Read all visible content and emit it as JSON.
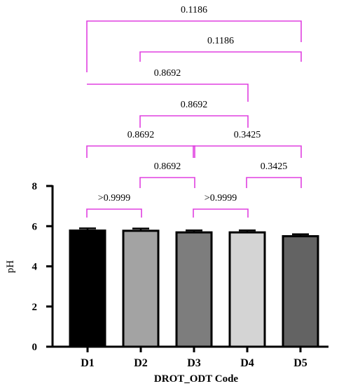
{
  "chart_data": {
    "type": "bar",
    "xlabel": "DROT_ODT Code",
    "ylabel": "pH",
    "categories": [
      "D1",
      "D2",
      "D3",
      "D4",
      "D5"
    ],
    "values": [
      5.78,
      5.77,
      5.69,
      5.69,
      5.5
    ],
    "errors": [
      0.11,
      0.11,
      0.1,
      0.1,
      0.1
    ],
    "ylim": [
      0,
      8
    ],
    "yticks": [
      "0",
      "2",
      "4",
      "6",
      "8"
    ],
    "bar_colors": [
      "#000000",
      "#a3a3a3",
      "#7d7d7d",
      "#d4d4d4",
      "#636363"
    ],
    "comparisons": [
      {
        "from": "D1",
        "to": "D2",
        "label": ">0.9999"
      },
      {
        "from": "D3",
        "to": "D4",
        "label": ">0.9999"
      },
      {
        "from": "D2",
        "to": "D3",
        "label": "0.8692"
      },
      {
        "from": "D4",
        "to": "D5",
        "label": "0.3425"
      },
      {
        "from": "D1",
        "to": "D3",
        "label": "0.8692"
      },
      {
        "from": "D3",
        "to": "D5",
        "label": "0.3425"
      },
      {
        "from": "D2",
        "to": "D4",
        "label": "0.8692"
      },
      {
        "from": "D1",
        "to": "D4",
        "label": "0.8692"
      },
      {
        "from": "D2",
        "to": "D5",
        "label": "0.1186"
      },
      {
        "from": "D1",
        "to": "D5",
        "label": "0.1186"
      }
    ],
    "bracket_color": "#e040e0",
    "grid": false,
    "legend": "none"
  }
}
